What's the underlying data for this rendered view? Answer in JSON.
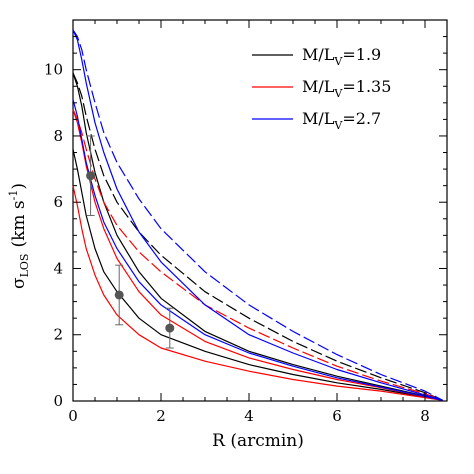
{
  "chart_data": {
    "type": "line",
    "xlabel": "R (arcmin)",
    "ylabel_symbol": "σ",
    "ylabel_sub": "LOS",
    "ylabel_units": "(km s",
    "ylabel_units_sup": "-1",
    "ylabel_close": ")",
    "xlim": [
      0,
      8.5
    ],
    "ylim": [
      0,
      11.5
    ],
    "xticks": [
      0,
      2,
      4,
      6,
      8
    ],
    "yticks": [
      0,
      2,
      4,
      6,
      8,
      10
    ],
    "legend_position": "top-right",
    "legend": [
      {
        "text": "M/L",
        "sub": "V",
        "value": "=1.9",
        "color": "#000000"
      },
      {
        "text": "M/L",
        "sub": "V",
        "value": "=1.35",
        "color": "#ff0000"
      },
      {
        "text": "M/L",
        "sub": "V",
        "value": "=2.7",
        "color": "#0000ff"
      }
    ],
    "series": [
      {
        "color": "#000000",
        "dash": "solid",
        "x": [
          0,
          0.1,
          0.2,
          0.3,
          0.5,
          0.7,
          1,
          1.5,
          2,
          3,
          4,
          5,
          6,
          7,
          8,
          8.4
        ],
        "y": [
          7.6,
          7.0,
          6.3,
          5.6,
          4.6,
          3.9,
          3.3,
          2.5,
          2.0,
          1.5,
          1.1,
          0.8,
          0.55,
          0.35,
          0.12,
          0.02
        ]
      },
      {
        "color": "#000000",
        "dash": "solid",
        "x": [
          0,
          0.1,
          0.2,
          0.3,
          0.5,
          0.7,
          1,
          1.5,
          2,
          3,
          4,
          5,
          6,
          7,
          8,
          8.4
        ],
        "y": [
          9.9,
          9.5,
          8.9,
          8.1,
          6.9,
          6.0,
          5.0,
          3.9,
          3.1,
          2.1,
          1.5,
          1.1,
          0.75,
          0.45,
          0.15,
          0.02
        ]
      },
      {
        "color": "#000000",
        "dash": "dashed",
        "x": [
          0,
          0.1,
          0.2,
          0.3,
          0.5,
          0.7,
          1,
          1.5,
          2,
          3,
          4,
          5,
          6,
          7,
          8,
          8.4
        ],
        "y": [
          9.9,
          9.6,
          9.2,
          8.6,
          7.6,
          6.8,
          6.0,
          5.1,
          4.4,
          3.3,
          2.5,
          1.8,
          1.2,
          0.7,
          0.25,
          0.02
        ]
      },
      {
        "color": "#ff0000",
        "dash": "solid",
        "x": [
          0,
          0.1,
          0.2,
          0.3,
          0.5,
          0.7,
          1,
          1.5,
          2,
          3,
          4,
          5,
          6,
          7,
          8,
          8.4
        ],
        "y": [
          6.5,
          5.9,
          5.2,
          4.6,
          3.8,
          3.2,
          2.6,
          2.0,
          1.6,
          1.2,
          0.9,
          0.65,
          0.45,
          0.3,
          0.1,
          0.02
        ]
      },
      {
        "color": "#ff0000",
        "dash": "solid",
        "x": [
          0,
          0.1,
          0.2,
          0.3,
          0.5,
          0.7,
          1,
          1.5,
          2,
          3,
          4,
          5,
          6,
          7,
          8,
          8.4
        ],
        "y": [
          8.8,
          8.4,
          7.8,
          7.1,
          6.0,
          5.2,
          4.3,
          3.3,
          2.6,
          1.8,
          1.3,
          0.95,
          0.65,
          0.4,
          0.13,
          0.02
        ]
      },
      {
        "color": "#ff0000",
        "dash": "dashed",
        "x": [
          0,
          0.1,
          0.2,
          0.3,
          0.5,
          0.7,
          1,
          1.5,
          2,
          3,
          4,
          5,
          6,
          7,
          8,
          8.4
        ],
        "y": [
          8.8,
          8.5,
          8.1,
          7.6,
          6.7,
          6.0,
          5.3,
          4.5,
          3.9,
          2.9,
          2.2,
          1.6,
          1.05,
          0.6,
          0.22,
          0.02
        ]
      },
      {
        "color": "#0000ff",
        "dash": "solid",
        "x": [
          0,
          0.1,
          0.2,
          0.3,
          0.5,
          0.7,
          1,
          1.5,
          2,
          3,
          4,
          5,
          6,
          7,
          8,
          8.4
        ],
        "y": [
          9.1,
          8.6,
          7.9,
          7.2,
          6.2,
          5.4,
          4.6,
          3.6,
          2.9,
          2.0,
          1.45,
          1.05,
          0.7,
          0.42,
          0.14,
          0.02
        ]
      },
      {
        "color": "#0000ff",
        "dash": "solid",
        "x": [
          0,
          0.1,
          0.2,
          0.3,
          0.5,
          0.7,
          1,
          1.5,
          2,
          3,
          4,
          5,
          6,
          7,
          8,
          8.4
        ],
        "y": [
          11.2,
          10.9,
          10.3,
          9.6,
          8.4,
          7.5,
          6.4,
          5.1,
          4.2,
          2.9,
          2.0,
          1.45,
          0.95,
          0.55,
          0.18,
          0.02
        ]
      },
      {
        "color": "#0000ff",
        "dash": "dashed",
        "x": [
          0,
          0.1,
          0.2,
          0.3,
          0.5,
          0.7,
          1,
          1.5,
          2,
          3,
          4,
          5,
          6,
          7,
          8,
          8.4
        ],
        "y": [
          11.2,
          11.0,
          10.6,
          10.0,
          9.0,
          8.1,
          7.2,
          6.1,
          5.2,
          3.9,
          2.9,
          2.1,
          1.4,
          0.8,
          0.3,
          0.02
        ]
      }
    ],
    "points": [
      {
        "x": 0.4,
        "y": 6.8,
        "yerr": 1.2
      },
      {
        "x": 1.05,
        "y": 3.2,
        "yerr": 0.9
      },
      {
        "x": 2.2,
        "y": 2.2,
        "yerr": 0.6
      }
    ]
  }
}
